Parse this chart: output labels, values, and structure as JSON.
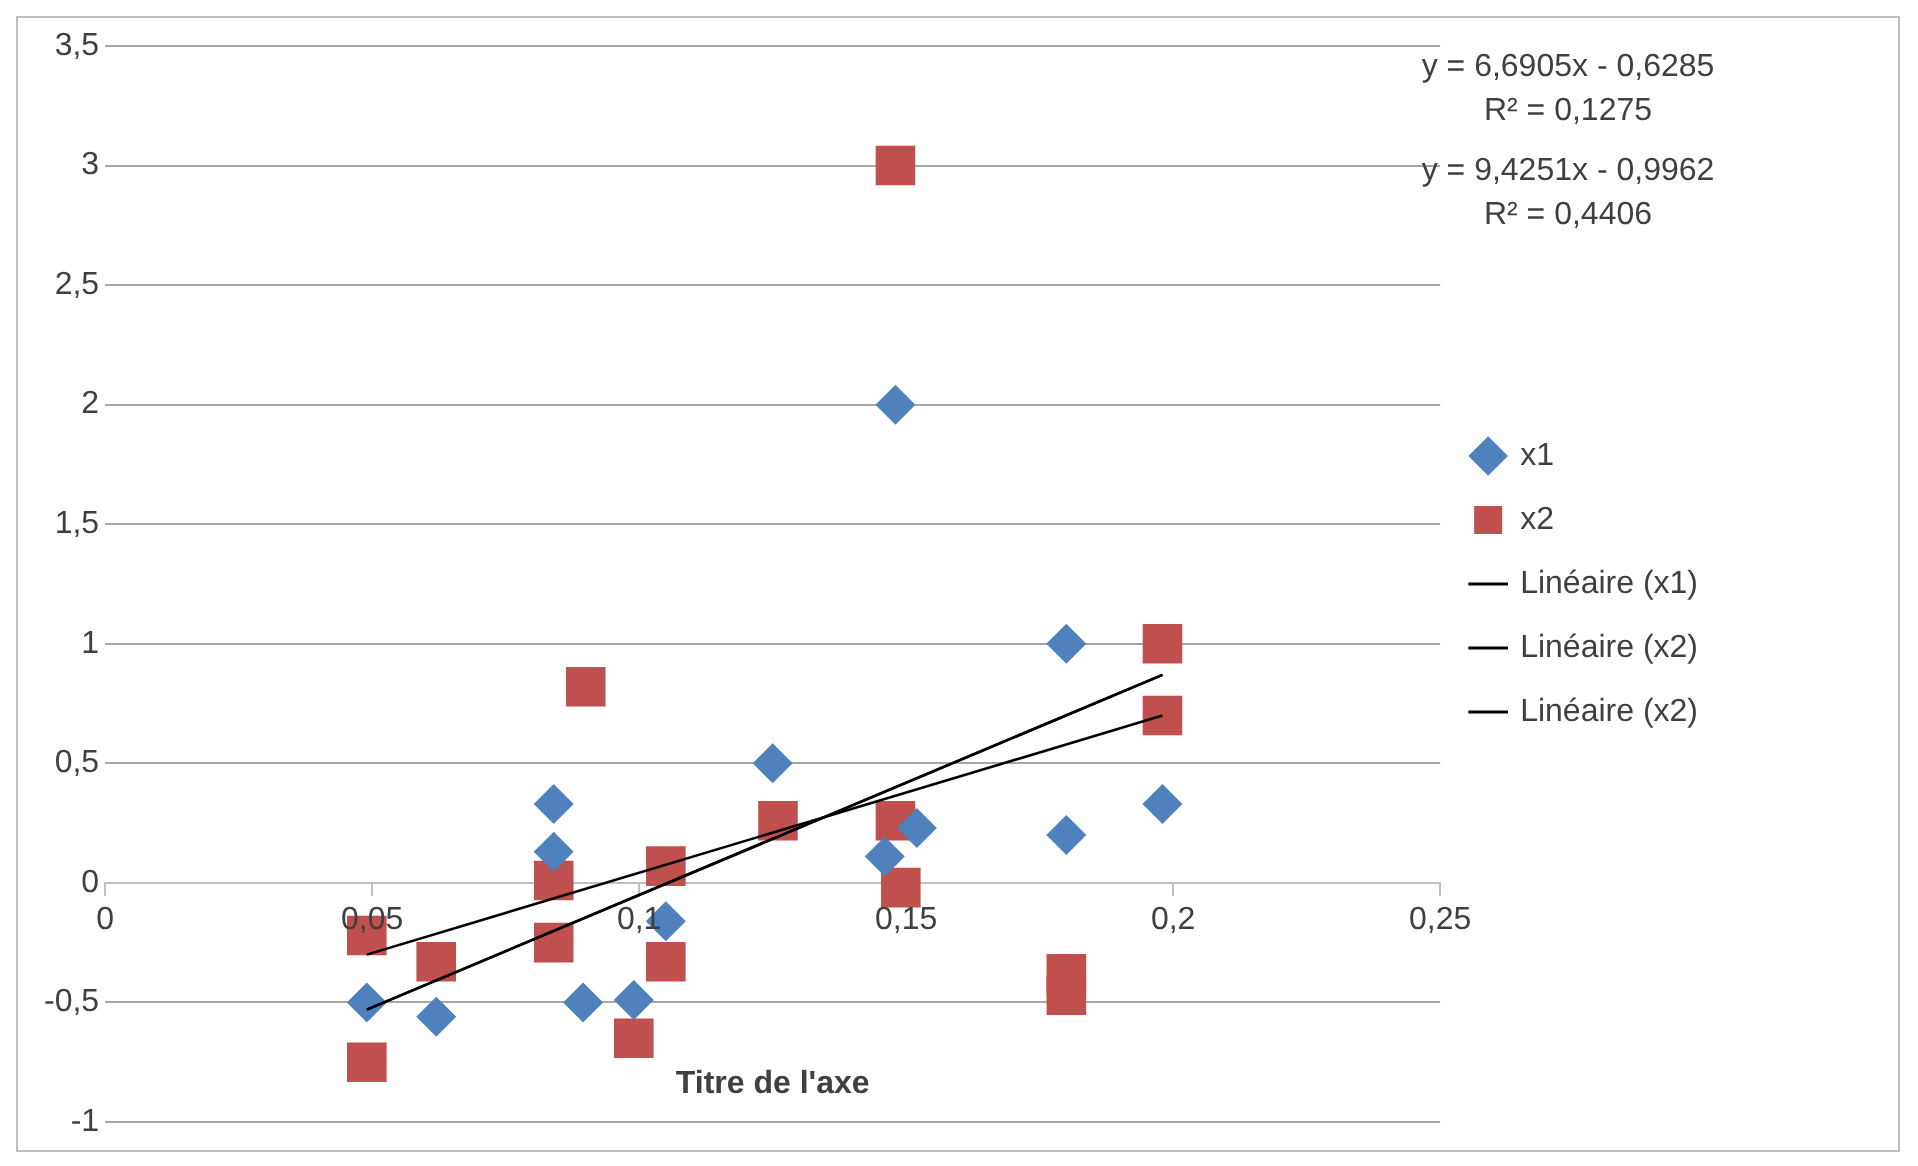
{
  "chart_data": {
    "type": "scatter",
    "xlabel": "Titre de l'axe",
    "annotations": [
      "y = 6,6905x - 0,6285\nR² = 0,1275",
      "y = 9,4251x - 0,9962\nR² = 0,4406"
    ],
    "series": [
      {
        "name": "x1",
        "type": "scatter",
        "marker": "diamond",
        "color": "#4f81bd",
        "x": [
          0.049,
          0.062,
          0.084,
          0.084,
          0.0895,
          0.099,
          0.105,
          0.125,
          0.146,
          0.148,
          0.152,
          0.18,
          0.18,
          0.198
        ],
        "values": [
          -0.5,
          -0.56,
          0.33,
          0.13,
          -0.5,
          -0.49,
          -0.16,
          0.5,
          0.11,
          2.0,
          0.23,
          1.0,
          0.2,
          0.33
        ]
      },
      {
        "name": "x2",
        "type": "scatter",
        "marker": "square",
        "color": "#c0504d",
        "x": [
          0.049,
          0.049,
          0.062,
          0.084,
          0.084,
          0.09,
          0.099,
          0.105,
          0.105,
          0.126,
          0.148,
          0.148,
          0.149,
          0.18,
          0.18,
          0.198,
          0.198
        ],
        "values": [
          -0.22,
          -0.75,
          -0.33,
          0.01,
          -0.25,
          0.82,
          -0.65,
          0.07,
          -0.33,
          0.26,
          3.0,
          0.26,
          -0.02,
          -0.38,
          -0.47,
          1.0,
          0.7
        ]
      },
      {
        "name": "Linéaire (x1)",
        "type": "line",
        "marker": "none",
        "color": "#000000",
        "x": [
          0.049,
          0.198
        ],
        "values": [
          -0.3,
          0.7
        ]
      },
      {
        "name": "Linéaire (x2)",
        "type": "line",
        "marker": "none",
        "color": "#000000",
        "x": [
          0.049,
          0.198
        ],
        "values": [
          -0.53,
          0.87
        ]
      },
      {
        "name": "Linéaire (x2)",
        "type": "line",
        "marker": "none",
        "color": "#000000",
        "x": [
          0.049,
          0.198
        ],
        "values": [
          -0.53,
          0.87
        ]
      }
    ],
    "xlim": [
      0,
      0.25
    ],
    "xticks": [
      0,
      {
        "value": 0.05,
        "label": "0,05"
      },
      {
        "value": 0.1,
        "label": "0,1"
      },
      {
        "value": 0.15,
        "label": "0,15"
      },
      {
        "value": 0.2,
        "label": "0,2"
      },
      {
        "value": 0.25,
        "label": "0,25"
      }
    ],
    "ylim": [
      -1,
      3.5
    ],
    "yticks": [
      {
        "value": -1,
        "label": "-1"
      },
      {
        "value": -0.5,
        "label": "-0,5"
      },
      0,
      {
        "value": 0.5,
        "label": "0,5"
      },
      1,
      {
        "value": 1.5,
        "label": "1,5"
      },
      2,
      {
        "value": 2.5,
        "label": "2,5"
      },
      3,
      {
        "value": 3.5,
        "label": "3,5"
      }
    ],
    "grid": "y",
    "legend": "right"
  }
}
